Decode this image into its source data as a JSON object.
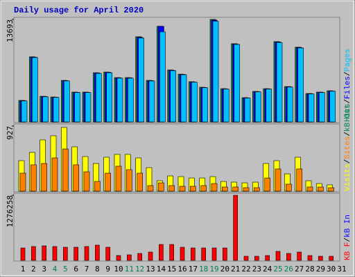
{
  "chart_data": [
    {
      "type": "bar",
      "title": "Daily usage for April 2020",
      "ylim": [
        0,
        13693
      ],
      "yticks": [
        13693
      ],
      "legend_separator": "/",
      "series": [
        {
          "name": "Hits",
          "color": "#00805c",
          "values": [
            2870,
            8700,
            3420,
            3330,
            5550,
            3980,
            3980,
            6570,
            6660,
            5920,
            5920,
            11380,
            5550,
            12770,
            6940,
            6380,
            5370,
            4630,
            13693,
            4440,
            10450,
            3240,
            4070,
            4440,
            10730,
            4720,
            9990,
            3790,
            3980,
            4160,
            null
          ]
        },
        {
          "name": "Files",
          "color": "#0000ff",
          "values": [
            2850,
            8650,
            3400,
            3310,
            5520,
            3960,
            3960,
            6540,
            6630,
            5890,
            5890,
            11300,
            5520,
            12770,
            6900,
            6350,
            5340,
            4600,
            13600,
            4420,
            10400,
            3220,
            4050,
            4420,
            10680,
            4700,
            9940,
            3770,
            3960,
            4140,
            null
          ]
        },
        {
          "name": "Pages",
          "color": "#00c0ff",
          "values": [
            2800,
            8600,
            3350,
            3270,
            5470,
            3920,
            3920,
            6480,
            6570,
            5840,
            5840,
            11200,
            5470,
            12030,
            6850,
            6300,
            5300,
            4560,
            13450,
            4380,
            10350,
            3180,
            4010,
            4380,
            10600,
            4650,
            9880,
            3730,
            3920,
            4100,
            null
          ]
        }
      ]
    },
    {
      "type": "bar",
      "ylim": [
        0,
        927
      ],
      "yticks": [
        927
      ],
      "legend_separator": "/",
      "series": [
        {
          "name": "Visits",
          "color": "#ffff00",
          "values": [
            434,
            552,
            730,
            789,
            907,
            631,
            493,
            394,
            483,
            523,
            523,
            473,
            335,
            148,
            217,
            207,
            187,
            187,
            207,
            138,
            128,
            118,
            128,
            394,
            434,
            246,
            483,
            148,
            108,
            89,
            null
          ]
        },
        {
          "name": "Sites",
          "color": "#ff8000",
          "values": [
            256,
            375,
            394,
            473,
            601,
            375,
            276,
            138,
            256,
            355,
            306,
            256,
            79,
            118,
            79,
            69,
            69,
            79,
            108,
            59,
            59,
            49,
            49,
            187,
            316,
            99,
            316,
            59,
            59,
            49,
            null
          ]
        },
        {
          "name": "kB Out",
          "color": "#00805c",
          "values": [
            null,
            null,
            null,
            null,
            null,
            null,
            null,
            null,
            null,
            null,
            null,
            null,
            null,
            null,
            null,
            null,
            null,
            null,
            null,
            null,
            null,
            null,
            null,
            null,
            null,
            null,
            null,
            null,
            null,
            null,
            null
          ]
        }
      ]
    },
    {
      "type": "bar",
      "ylim": [
        0,
        1276258
      ],
      "yticks": [
        1276258
      ],
      "legend_separator": "/",
      "categories": [
        "1",
        "2",
        "3",
        "4",
        "5",
        "6",
        "7",
        "8",
        "9",
        "10",
        "11",
        "12",
        "13",
        "14",
        "15",
        "16",
        "17",
        "18",
        "19",
        "20",
        "21",
        "22",
        "23",
        "24",
        "25",
        "26",
        "27",
        "28",
        "29",
        "30",
        "31"
      ],
      "category_colors": [
        "#000",
        "#000",
        "#000",
        "#00805c",
        "#00805c",
        "#000",
        "#000",
        "#000",
        "#000",
        "#000",
        "#00805c",
        "#00805c",
        "#000",
        "#000",
        "#000",
        "#000",
        "#000",
        "#00805c",
        "#00805c",
        "#000",
        "#000",
        "#000",
        "#000",
        "#000",
        "#00805c",
        "#00805c",
        "#000",
        "#000",
        "#000",
        "#000",
        "#000"
      ],
      "series": [
        {
          "name": "KB F",
          "color": "#ff0000",
          "values": [
            244000,
            272000,
            285000,
            272000,
            258000,
            258000,
            272000,
            299000,
            258000,
            95000,
            109000,
            136000,
            163000,
            312000,
            312000,
            258000,
            244000,
            244000,
            244000,
            244000,
            1276258,
            81000,
            81000,
            95000,
            177000,
            136000,
            163000,
            95000,
            81000,
            81000,
            null
          ]
        },
        {
          "name": "kB In",
          "color": "#0000ff",
          "values": [
            null,
            null,
            null,
            null,
            null,
            null,
            null,
            null,
            null,
            null,
            null,
            null,
            null,
            null,
            null,
            null,
            null,
            null,
            null,
            null,
            null,
            null,
            null,
            null,
            null,
            null,
            null,
            null,
            null,
            null,
            null
          ]
        }
      ]
    }
  ]
}
